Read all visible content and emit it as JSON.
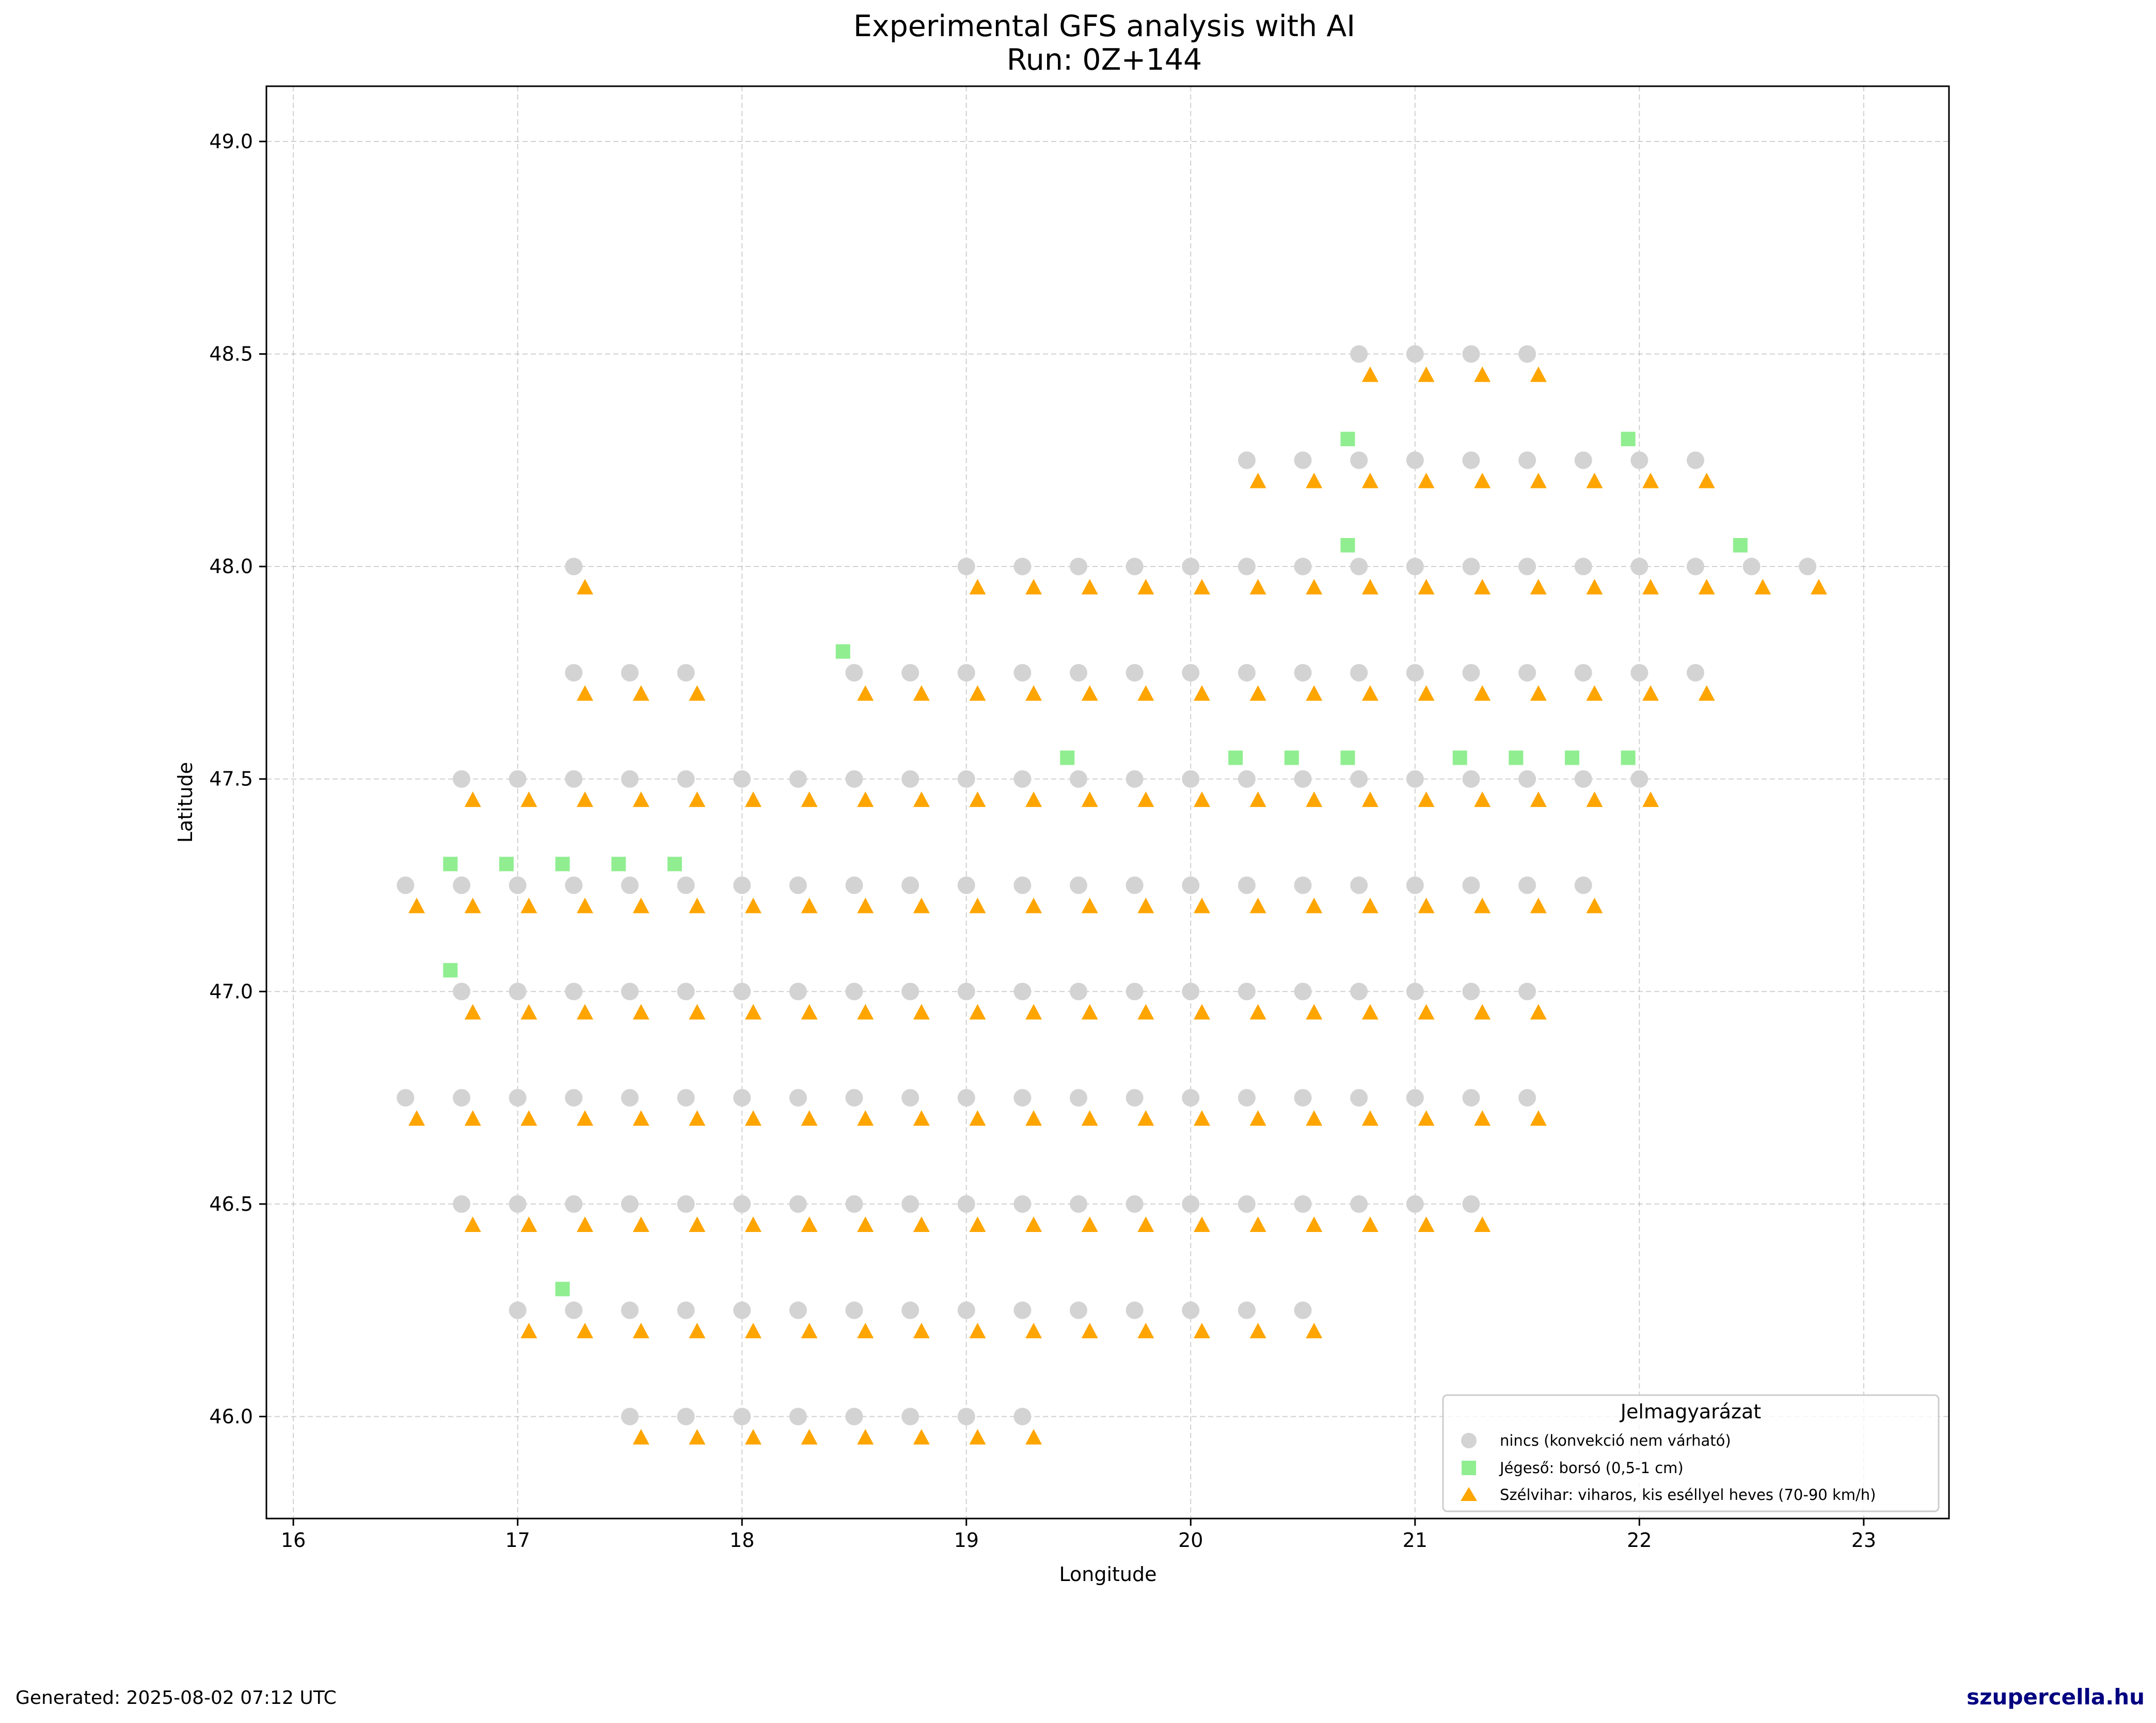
{
  "chart_data": {
    "type": "scatter",
    "title": "Experimental GFS analysis with AI",
    "subtitle": "Run: 0Z+144",
    "xlabel": "Longitude",
    "ylabel": "Latitude",
    "xlim": [
      15.88,
      23.38
    ],
    "ylim": [
      45.76,
      49.13
    ],
    "xticks": [
      "16",
      "17",
      "18",
      "19",
      "20",
      "21",
      "22",
      "23"
    ],
    "xtick_values": [
      16,
      17,
      18,
      19,
      20,
      21,
      22,
      23
    ],
    "yticks": [
      "46.0",
      "46.5",
      "47.0",
      "47.5",
      "48.0",
      "48.5",
      "49.0"
    ],
    "ytick_values": [
      46.0,
      46.5,
      47.0,
      47.5,
      48.0,
      48.5,
      49.0
    ],
    "grid": true,
    "legend": {
      "title": "Jelmagyarázat",
      "placement": "lower-right",
      "entries": [
        {
          "label": "nincs (konvekció nem várható)",
          "marker": "circle",
          "color": "#d3d3d3"
        },
        {
          "label": "Jégeső: borsó (0,5-1 cm)",
          "marker": "square",
          "color": "#90ee90"
        },
        {
          "label": "Szélvihar: viharos, kis eséllyel heves (70-90 km/h)",
          "marker": "triangle",
          "color": "#ffa500"
        }
      ]
    },
    "series": [
      {
        "name": "nincs (konvekció nem várható)",
        "marker": "circle",
        "color": "#d3d3d3",
        "rows": [
          {
            "lat": 48.5,
            "lon": [
              20.75,
              21.0,
              21.25,
              21.5
            ]
          },
          {
            "lat": 48.25,
            "lon": [
              20.25,
              20.5,
              20.75,
              21.0,
              21.25,
              21.5,
              21.75,
              22.0,
              22.25
            ]
          },
          {
            "lat": 48.0,
            "lon": [
              17.25,
              19.0,
              19.25,
              19.5,
              19.75,
              20.0,
              20.25,
              20.5,
              20.75,
              21.0,
              21.25,
              21.5,
              21.75,
              22.0,
              22.25,
              22.5,
              22.75
            ]
          },
          {
            "lat": 47.75,
            "lon": [
              17.25,
              17.5,
              17.75,
              18.5,
              18.75,
              19.0,
              19.25,
              19.5,
              19.75,
              20.0,
              20.25,
              20.5,
              20.75,
              21.0,
              21.25,
              21.5,
              21.75,
              22.0,
              22.25
            ]
          },
          {
            "lat": 47.5,
            "lon": [
              16.75,
              17.0,
              17.25,
              17.5,
              17.75,
              18.0,
              18.25,
              18.5,
              18.75,
              19.0,
              19.25,
              19.5,
              19.75,
              20.0,
              20.25,
              20.5,
              20.75,
              21.0,
              21.25,
              21.5,
              21.75,
              22.0
            ]
          },
          {
            "lat": 47.25,
            "lon": [
              16.5,
              16.75,
              17.0,
              17.25,
              17.5,
              17.75,
              18.0,
              18.25,
              18.5,
              18.75,
              19.0,
              19.25,
              19.5,
              19.75,
              20.0,
              20.25,
              20.5,
              20.75,
              21.0,
              21.25,
              21.5,
              21.75
            ]
          },
          {
            "lat": 47.0,
            "lon": [
              16.75,
              17.0,
              17.25,
              17.5,
              17.75,
              18.0,
              18.25,
              18.5,
              18.75,
              19.0,
              19.25,
              19.5,
              19.75,
              20.0,
              20.25,
              20.5,
              20.75,
              21.0,
              21.25,
              21.5
            ]
          },
          {
            "lat": 46.75,
            "lon": [
              16.5,
              16.75,
              17.0,
              17.25,
              17.5,
              17.75,
              18.0,
              18.25,
              18.5,
              18.75,
              19.0,
              19.25,
              19.5,
              19.75,
              20.0,
              20.25,
              20.5,
              20.75,
              21.0,
              21.25,
              21.5
            ]
          },
          {
            "lat": 46.5,
            "lon": [
              16.75,
              17.0,
              17.25,
              17.5,
              17.75,
              18.0,
              18.25,
              18.5,
              18.75,
              19.0,
              19.25,
              19.5,
              19.75,
              20.0,
              20.25,
              20.5,
              20.75,
              21.0,
              21.25
            ]
          },
          {
            "lat": 46.25,
            "lon": [
              17.0,
              17.25,
              17.5,
              17.75,
              18.0,
              18.25,
              18.5,
              18.75,
              19.0,
              19.25,
              19.5,
              19.75,
              20.0,
              20.25,
              20.5
            ]
          },
          {
            "lat": 46.0,
            "lon": [
              17.5,
              17.75,
              18.0,
              18.25,
              18.5,
              18.75,
              19.0,
              19.25
            ]
          }
        ]
      },
      {
        "name": "Jégeső: borsó (0,5-1 cm)",
        "marker": "square",
        "color": "#90ee90",
        "rows": [
          {
            "lat": 48.3,
            "lon": [
              20.7,
              21.95
            ]
          },
          {
            "lat": 48.05,
            "lon": [
              20.7,
              22.45
            ]
          },
          {
            "lat": 47.8,
            "lon": [
              18.45
            ]
          },
          {
            "lat": 47.55,
            "lon": [
              19.45,
              20.2,
              20.45,
              20.7,
              21.2,
              21.45,
              21.7,
              21.95
            ]
          },
          {
            "lat": 47.3,
            "lon": [
              16.7,
              16.95,
              17.2,
              17.45,
              17.7
            ]
          },
          {
            "lat": 47.05,
            "lon": [
              16.7
            ]
          },
          {
            "lat": 46.3,
            "lon": [
              17.2
            ]
          }
        ]
      },
      {
        "name": "Szélvihar: viharos, kis eséllyel heves (70-90 km/h)",
        "marker": "triangle",
        "color": "#ffa500",
        "rows": [
          {
            "lat": 48.45,
            "lon": [
              20.8,
              21.05,
              21.3,
              21.55
            ]
          },
          {
            "lat": 48.2,
            "lon": [
              20.3,
              20.55,
              20.8,
              21.05,
              21.3,
              21.55,
              21.8,
              22.05,
              22.3
            ]
          },
          {
            "lat": 47.95,
            "lon": [
              17.3,
              19.05,
              19.3,
              19.55,
              19.8,
              20.05,
              20.3,
              20.55,
              20.8,
              21.05,
              21.3,
              21.55,
              21.8,
              22.05,
              22.3,
              22.55,
              22.8
            ]
          },
          {
            "lat": 47.7,
            "lon": [
              17.3,
              17.55,
              17.8,
              18.55,
              18.8,
              19.05,
              19.3,
              19.55,
              19.8,
              20.05,
              20.3,
              20.55,
              20.8,
              21.05,
              21.3,
              21.55,
              21.8,
              22.05,
              22.3
            ]
          },
          {
            "lat": 47.45,
            "lon": [
              16.8,
              17.05,
              17.3,
              17.55,
              17.8,
              18.05,
              18.3,
              18.55,
              18.8,
              19.05,
              19.3,
              19.55,
              19.8,
              20.05,
              20.3,
              20.55,
              20.8,
              21.05,
              21.3,
              21.55,
              21.8,
              22.05
            ]
          },
          {
            "lat": 47.2,
            "lon": [
              16.55,
              16.8,
              17.05,
              17.3,
              17.55,
              17.8,
              18.05,
              18.3,
              18.55,
              18.8,
              19.05,
              19.3,
              19.55,
              19.8,
              20.05,
              20.3,
              20.55,
              20.8,
              21.05,
              21.3,
              21.55,
              21.8
            ]
          },
          {
            "lat": 46.95,
            "lon": [
              16.8,
              17.05,
              17.3,
              17.55,
              17.8,
              18.05,
              18.3,
              18.55,
              18.8,
              19.05,
              19.3,
              19.55,
              19.8,
              20.05,
              20.3,
              20.55,
              20.8,
              21.05,
              21.3,
              21.55
            ]
          },
          {
            "lat": 46.7,
            "lon": [
              16.55,
              16.8,
              17.05,
              17.3,
              17.55,
              17.8,
              18.05,
              18.3,
              18.55,
              18.8,
              19.05,
              19.3,
              19.55,
              19.8,
              20.05,
              20.3,
              20.55,
              20.8,
              21.05,
              21.3,
              21.55
            ]
          },
          {
            "lat": 46.45,
            "lon": [
              16.8,
              17.05,
              17.3,
              17.55,
              17.8,
              18.05,
              18.3,
              18.55,
              18.8,
              19.05,
              19.3,
              19.55,
              19.8,
              20.05,
              20.3,
              20.55,
              20.8,
              21.05,
              21.3
            ]
          },
          {
            "lat": 46.2,
            "lon": [
              17.05,
              17.3,
              17.55,
              17.8,
              18.05,
              18.3,
              18.55,
              18.8,
              19.05,
              19.3,
              19.55,
              19.8,
              20.05,
              20.3,
              20.55
            ]
          },
          {
            "lat": 45.95,
            "lon": [
              17.55,
              17.8,
              18.05,
              18.3,
              18.55,
              18.8,
              19.05,
              19.3
            ]
          }
        ]
      }
    ]
  },
  "footer": {
    "generated": "Generated: 2025-08-02 07:12 UTC",
    "brand": "szupercella.hu"
  }
}
